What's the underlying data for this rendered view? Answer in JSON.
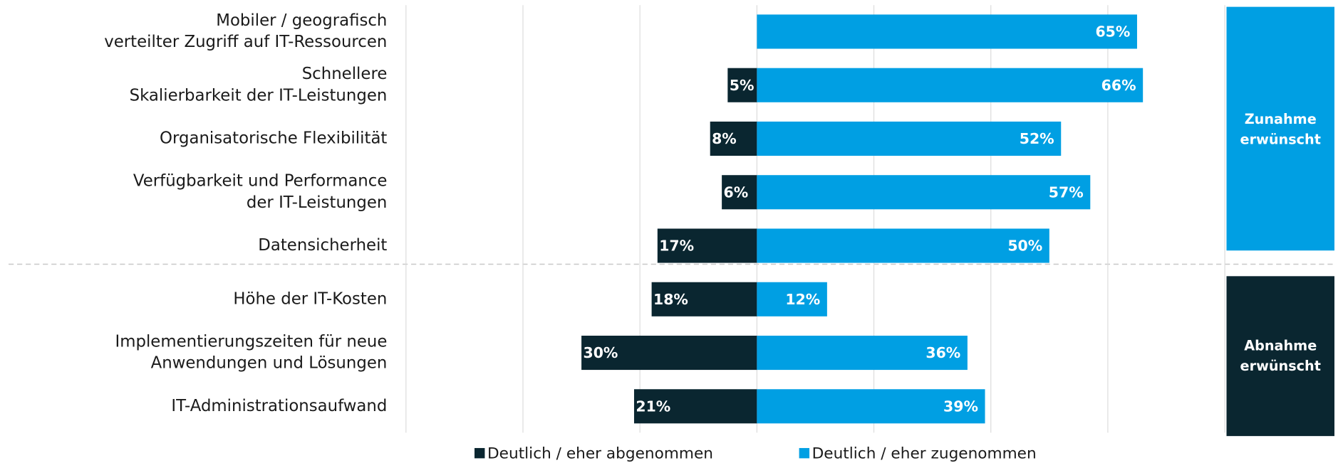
{
  "chart_data": {
    "type": "diverging_bar",
    "categories": [
      [
        "Mobiler / geografisch",
        "verteilter Zugriff auf IT-Ressourcen"
      ],
      [
        "Schnellere",
        "Skalierbarkeit der IT-Leistungen"
      ],
      [
        "Organisatorische Flexibilität"
      ],
      [
        "Verfügbarkeit und Performance",
        "der IT-Leistungen"
      ],
      [
        "Datensicherheit"
      ],
      [
        "Höhe der IT-Kosten"
      ],
      [
        "Implementierungszeiten für neue",
        "Anwendungen und Lösungen"
      ],
      [
        "IT-Administrationsaufwand"
      ]
    ],
    "series": [
      {
        "name": "Deutlich / eher abgenommen",
        "color": "#0a2630",
        "direction": "left",
        "values": [
          null,
          5,
          8,
          6,
          17,
          18,
          30,
          21
        ],
        "value_labels": [
          null,
          "5%",
          "8%",
          "6%",
          "17%",
          "18%",
          "30%",
          "21%"
        ]
      },
      {
        "name": "Deutlich / eher zugenommen",
        "color": "#009fe3",
        "direction": "right",
        "values": [
          65,
          66,
          52,
          57,
          50,
          12,
          36,
          39
        ],
        "value_labels": [
          "65%",
          "66%",
          "52%",
          "57%",
          "50%",
          "12%",
          "36%",
          "39%"
        ]
      }
    ],
    "groups": [
      {
        "label": [
          "Zunahme",
          "erwünscht"
        ]
      },
      {
        "label": [
          "Abnahme",
          "erwünscht"
        ]
      }
    ],
    "xlim": [
      -60,
      80
    ],
    "xticks": [
      -60,
      -40,
      -20,
      0,
      20,
      40,
      60,
      80
    ],
    "grid": true
  }
}
